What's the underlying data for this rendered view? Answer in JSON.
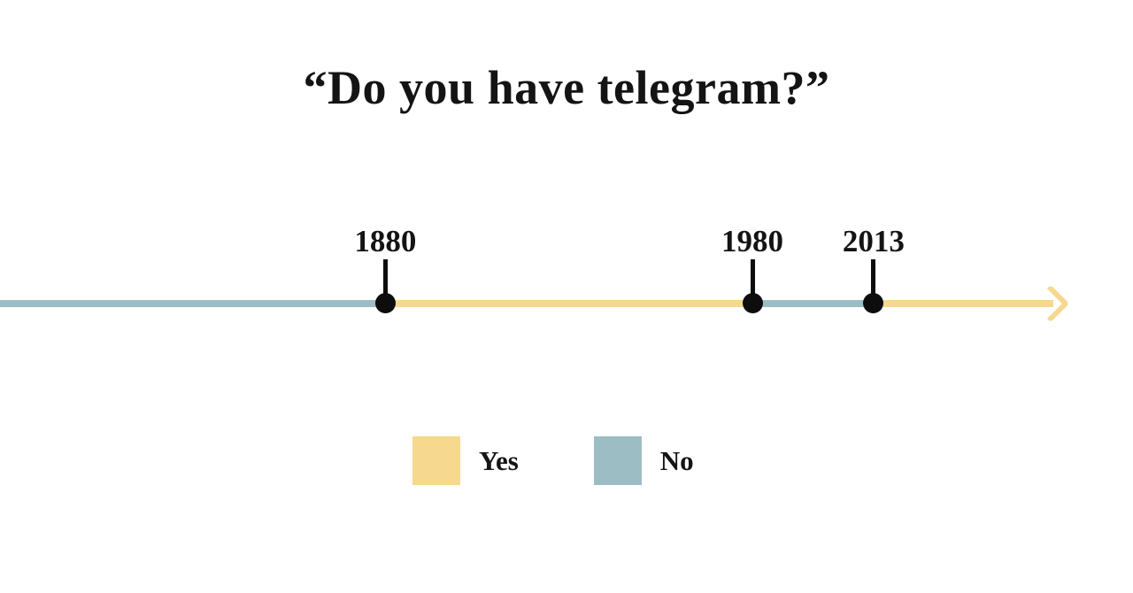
{
  "title": "“Do you have telegram?”",
  "chart_data": {
    "type": "timeline",
    "title": "“Do you have telegram?”",
    "question": "Do you have telegram?",
    "axis": {
      "unit": "year",
      "domain_start": 1775,
      "domain_end": 2062,
      "arrow_direction": "right"
    },
    "events": [
      {
        "year": 1880,
        "label": "1880"
      },
      {
        "year": 1980,
        "label": "1980"
      },
      {
        "year": 2013,
        "label": "2013"
      }
    ],
    "segments": [
      {
        "from": 1775,
        "to": 1880,
        "answer": "No"
      },
      {
        "from": 1880,
        "to": 1980,
        "answer": "Yes"
      },
      {
        "from": 1980,
        "to": 2013,
        "answer": "No"
      },
      {
        "from": 2013,
        "to": 2062,
        "answer": "Yes"
      }
    ],
    "legend": [
      {
        "label": "Yes",
        "color": "#f6d88f"
      },
      {
        "label": "No",
        "color": "#9dbdc5"
      }
    ],
    "colors": {
      "Yes": "#f6d88f",
      "No": "#9dbdc5",
      "marker": "#0d0d0d",
      "text": "#141414"
    },
    "legend_position": "bottom-center",
    "grid": false
  }
}
